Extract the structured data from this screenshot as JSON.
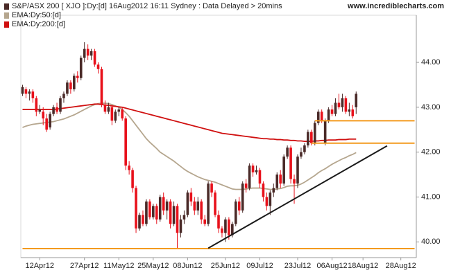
{
  "chart_data": {
    "type": "candlestick",
    "title": "S&P/ASX 200 [ XJO ]:Dy:[d]  16Aug2012 16:11  Sydney : Data Delayed > 20mins",
    "source": "www.incrediblecharts.com",
    "up_color": "#4a2a28",
    "down_color": "#e8111b",
    "categories": [
      null,
      null,
      null,
      null,
      null,
      "12Apr12",
      null,
      null,
      null,
      null,
      null,
      null,
      null,
      null,
      null,
      null,
      null,
      null,
      "27Apr12",
      null,
      null,
      null,
      null,
      null,
      null,
      null,
      null,
      null,
      "11May12",
      null,
      null,
      null,
      null,
      null,
      null,
      null,
      null,
      null,
      "25May12",
      null,
      null,
      null,
      null,
      null,
      null,
      null,
      null,
      null,
      "08Jun12",
      null,
      null,
      null,
      null,
      null,
      null,
      null,
      null,
      null,
      null,
      "25Jun12",
      null,
      null,
      null,
      null,
      null,
      null,
      null,
      null,
      null,
      "09Jul12",
      null,
      null,
      null,
      null,
      null,
      null,
      null,
      null,
      null,
      null,
      "23Jul12",
      null,
      null,
      null,
      null,
      null,
      null,
      null,
      null,
      null,
      "06Aug12",
      null,
      null,
      null,
      null,
      null,
      null,
      null,
      null,
      "18Aug12",
      null,
      null,
      null,
      null,
      null,
      null,
      null,
      null,
      null,
      null,
      "28Aug12",
      null,
      null,
      null,
      null
    ],
    "open": [
      43.3,
      43.4,
      43.3,
      43.35,
      43.2,
      42.9,
      42.9,
      42.75,
      42.55,
      42.85,
      43.0,
      42.9,
      43.2,
      43.3,
      43.55,
      43.4,
      43.7,
      43.65,
      44.1,
      44.3,
      44.15,
      44.25,
      43.95,
      43.85,
      43.05,
      42.9,
      43.0,
      42.7,
      42.9,
      42.95,
      42.75,
      41.7,
      41.6,
      41.2,
      40.3,
      40.6,
      40.4,
      40.9,
      40.55,
      40.8,
      40.5,
      41.0,
      40.7,
      40.9,
      40.4,
      40.8,
      40.2,
      40.5,
      40.6,
      41.1,
      40.9,
      40.7,
      40.9,
      40.5,
      40.4,
      41.3,
      41.1,
      40.6,
      40.3,
      40.2,
      40.5,
      40.15,
      40.4,
      40.9,
      40.7,
      41.3,
      41.2,
      41.7,
      41.55,
      41.6,
      41.3,
      41.0,
      40.8,
      41.1,
      41.2,
      41.5,
      41.3,
      41.9,
      42.1,
      41.4,
      41.3,
      41.9,
      42.0,
      42.15,
      42.45,
      42.2,
      42.65,
      42.9,
      42.2,
      42.7,
      42.95,
      42.85,
      43.1,
      43.0,
      43.2,
      42.9,
      42.95,
      43.0,
      null,
      null,
      null,
      null,
      null,
      null,
      null,
      null,
      null,
      null,
      null,
      null,
      null,
      null,
      null,
      null,
      null
    ],
    "high": [
      43.5,
      43.45,
      43.4,
      43.4,
      43.25,
      43.05,
      43.0,
      42.85,
      42.9,
      43.05,
      43.1,
      43.25,
      43.35,
      43.6,
      43.6,
      43.75,
      43.8,
      44.15,
      44.45,
      44.4,
      44.3,
      44.3,
      44.0,
      43.9,
      43.15,
      43.1,
      43.05,
      42.95,
      43.0,
      43.0,
      42.8,
      41.8,
      41.65,
      41.25,
      40.65,
      40.7,
      40.95,
      40.95,
      40.85,
      40.85,
      41.05,
      41.1,
      40.95,
      40.95,
      40.9,
      40.85,
      40.6,
      40.7,
      41.15,
      41.2,
      41.0,
      41.0,
      40.95,
      40.6,
      41.35,
      41.35,
      41.15,
      40.7,
      40.35,
      40.55,
      40.55,
      40.45,
      40.95,
      41.0,
      41.35,
      41.4,
      41.75,
      41.75,
      41.7,
      41.65,
      41.35,
      41.1,
      41.15,
      41.3,
      41.55,
      41.6,
      41.95,
      42.15,
      42.15,
      41.5,
      41.95,
      42.1,
      42.2,
      42.5,
      42.5,
      42.7,
      42.95,
      42.95,
      42.75,
      43.0,
      43.05,
      43.2,
      43.3,
      43.3,
      43.25,
      43.1,
      43.05,
      43.35,
      null,
      null,
      null,
      null,
      null,
      null,
      null,
      null,
      null,
      null,
      null,
      null,
      null,
      null,
      null,
      null,
      null
    ],
    "low": [
      43.25,
      43.2,
      43.15,
      43.1,
      42.8,
      42.85,
      42.6,
      42.45,
      42.5,
      42.8,
      42.85,
      42.85,
      43.1,
      43.25,
      43.3,
      43.35,
      43.55,
      43.6,
      44.0,
      44.05,
      44.05,
      43.9,
      43.75,
      43.0,
      42.85,
      42.85,
      42.6,
      42.65,
      42.8,
      42.7,
      41.6,
      41.5,
      41.1,
      40.2,
      40.25,
      40.35,
      40.35,
      40.5,
      40.5,
      40.4,
      40.45,
      40.6,
      40.5,
      40.3,
      40.35,
      39.85,
      40.1,
      40.4,
      40.55,
      40.8,
      40.6,
      40.6,
      40.4,
      40.35,
      40.35,
      41.0,
      40.55,
      40.2,
      40.1,
      40.0,
      40.05,
      40.1,
      40.35,
      40.6,
      40.65,
      41.1,
      41.15,
      41.45,
      41.5,
      41.2,
      40.9,
      40.7,
      40.6,
      41.0,
      41.15,
      41.2,
      41.25,
      41.85,
      41.3,
      40.85,
      41.2,
      41.85,
      41.95,
      42.1,
      42.15,
      42.15,
      42.6,
      42.65,
      42.15,
      42.65,
      42.8,
      42.8,
      42.95,
      42.9,
      42.85,
      42.8,
      42.75,
      42.85,
      null,
      null,
      null,
      null,
      null,
      null,
      null,
      null,
      null,
      null,
      null,
      null,
      null,
      null,
      null,
      null,
      null
    ],
    "close": [
      43.45,
      43.3,
      43.35,
      43.2,
      42.9,
      42.95,
      42.75,
      42.5,
      42.85,
      43.0,
      42.9,
      43.2,
      43.3,
      43.55,
      43.4,
      43.7,
      43.65,
      44.1,
      44.3,
      44.15,
      44.25,
      43.95,
      43.85,
      43.05,
      42.9,
      43.0,
      42.7,
      42.9,
      42.95,
      42.75,
      41.7,
      41.6,
      41.2,
      40.3,
      40.6,
      40.4,
      40.9,
      40.55,
      40.8,
      40.5,
      41.0,
      40.7,
      40.9,
      40.4,
      40.8,
      40.2,
      40.5,
      40.6,
      41.1,
      40.9,
      40.7,
      40.9,
      40.5,
      40.4,
      41.3,
      41.1,
      40.6,
      40.3,
      40.2,
      40.5,
      40.15,
      40.4,
      40.9,
      40.7,
      41.3,
      41.2,
      41.7,
      41.55,
      41.6,
      41.3,
      41.0,
      40.8,
      41.1,
      41.2,
      41.5,
      41.3,
      41.9,
      42.1,
      41.4,
      41.3,
      41.9,
      42.0,
      42.15,
      42.45,
      42.2,
      42.65,
      42.9,
      42.7,
      42.7,
      42.95,
      42.85,
      43.1,
      43.0,
      43.2,
      42.9,
      42.95,
      42.8,
      43.3,
      null,
      null,
      null,
      null,
      null,
      null,
      null,
      null,
      null,
      null,
      null,
      null,
      null,
      null,
      null,
      null,
      null
    ],
    "series": [
      {
        "name": "EMA:Dy:50:[d]",
        "color": "#b5a68e",
        "values": [
          42.55,
          42.58,
          42.6,
          42.62,
          42.63,
          42.64,
          42.65,
          42.66,
          42.67,
          42.68,
          42.7,
          42.72,
          42.74,
          42.77,
          42.8,
          42.83,
          42.87,
          42.91,
          42.95,
          42.99,
          43.03,
          43.06,
          43.08,
          43.09,
          43.09,
          43.08,
          43.06,
          43.03,
          43.0,
          42.95,
          42.88,
          42.8,
          42.7,
          42.6,
          42.5,
          42.4,
          42.3,
          42.22,
          42.15,
          42.08,
          42.0,
          41.95,
          41.9,
          41.85,
          41.8,
          41.74,
          41.68,
          41.62,
          41.57,
          41.53,
          41.49,
          41.45,
          41.42,
          41.39,
          41.37,
          41.35,
          41.33,
          41.3,
          41.27,
          41.24,
          41.21,
          41.18,
          41.17,
          41.17,
          41.17,
          41.18,
          41.19,
          41.2,
          41.2,
          41.2,
          41.19,
          41.18,
          41.17,
          41.17,
          41.18,
          41.19,
          41.21,
          41.24,
          41.25,
          41.25,
          41.26,
          41.29,
          41.33,
          41.38,
          41.43,
          41.48,
          41.54,
          41.59,
          41.63,
          41.68,
          41.73,
          41.77,
          41.81,
          41.85,
          41.88,
          41.92,
          41.95,
          41.99,
          null,
          null,
          null,
          null,
          null,
          null,
          null,
          null,
          null,
          null,
          null,
          null,
          null,
          null,
          null,
          null,
          null
        ]
      },
      {
        "name": "EMA:Dy:200:[d]",
        "color": "#d01010",
        "values": [
          42.95,
          42.95,
          42.95,
          42.95,
          42.95,
          42.95,
          42.95,
          42.95,
          42.95,
          42.95,
          42.96,
          42.97,
          42.98,
          42.99,
          43.0,
          43.01,
          43.02,
          43.03,
          43.04,
          43.05,
          43.06,
          43.07,
          43.07,
          43.06,
          43.05,
          43.04,
          43.03,
          43.02,
          43.01,
          43.0,
          42.98,
          42.96,
          42.94,
          42.92,
          42.9,
          42.88,
          42.86,
          42.84,
          42.82,
          42.8,
          42.78,
          42.76,
          42.74,
          42.72,
          42.7,
          42.68,
          42.66,
          42.64,
          42.62,
          42.6,
          42.58,
          42.56,
          42.54,
          42.52,
          42.5,
          42.48,
          42.46,
          42.44,
          42.42,
          42.41,
          42.4,
          42.39,
          42.38,
          42.37,
          42.36,
          42.35,
          42.34,
          42.33,
          42.32,
          42.31,
          42.3,
          42.3,
          42.29,
          42.29,
          42.28,
          42.28,
          42.27,
          42.27,
          42.26,
          42.26,
          42.25,
          42.25,
          42.24,
          42.24,
          42.24,
          42.25,
          42.25,
          42.26,
          42.26,
          42.27,
          42.27,
          42.27,
          42.28,
          42.28,
          42.28,
          42.29,
          42.29,
          42.29,
          null,
          null,
          null,
          null,
          null,
          null,
          null,
          null,
          null,
          null,
          null,
          null,
          null,
          null,
          null,
          null,
          null
        ]
      }
    ],
    "lines": [
      {
        "color": "#f39a1e",
        "x": [
          85,
          114
        ],
        "y": [
          42.7,
          42.7
        ]
      },
      {
        "color": "#f39a1e",
        "x": [
          84,
          114
        ],
        "y": [
          42.2,
          42.2
        ]
      },
      {
        "color": "#f39a1e",
        "x": [
          0,
          114
        ],
        "y": [
          39.85,
          39.85
        ]
      },
      {
        "color": "#1a1a1a",
        "x": [
          54,
          106
        ],
        "y": [
          39.86,
          42.14
        ]
      }
    ],
    "ylim": [
      39.65,
      45.05
    ],
    "yticks": [
      {
        "value": 40,
        "label": "40.00"
      },
      {
        "value": 41,
        "label": "41.00"
      },
      {
        "value": 42,
        "label": "42.00"
      },
      {
        "value": 43,
        "label": "43.00"
      },
      {
        "value": 44,
        "label": "44.00"
      }
    ],
    "legend": "top-left"
  }
}
